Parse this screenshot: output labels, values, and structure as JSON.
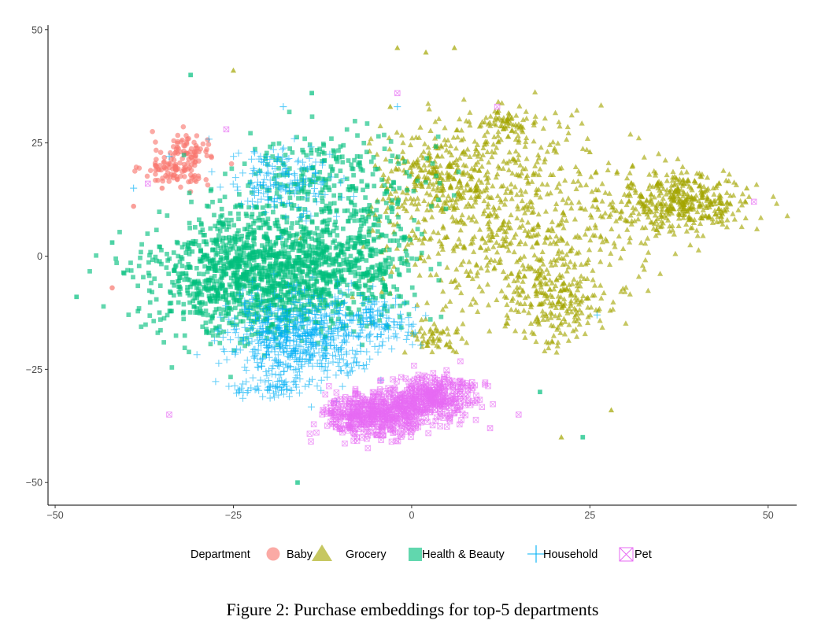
{
  "caption": "Figure 2: Purchase embeddings for top-5 departments",
  "chart_data": {
    "type": "scatter",
    "title": "",
    "xlabel": "",
    "ylabel": "",
    "xlim": [
      -51,
      54
    ],
    "ylim": [
      -55,
      51
    ],
    "x_ticks": [
      -50,
      -25,
      0,
      25,
      50
    ],
    "y_ticks": [
      50,
      25,
      0,
      -25,
      -50
    ],
    "grid": false,
    "legend_title": "Department",
    "legend_position": "bottom",
    "series": [
      {
        "name": "Baby",
        "color": "#F8766D",
        "marker": "circle",
        "clusters": [
          {
            "cx": -32,
            "cy": 24,
            "sx": 1.8,
            "sy": 1.8,
            "n": 60
          },
          {
            "cx": -33,
            "cy": 19,
            "sx": 2.4,
            "sy": 1.8,
            "n": 90
          }
        ],
        "points": [
          [
            -42,
            -7
          ],
          [
            -35,
            15
          ],
          [
            -39,
            11
          ]
        ]
      },
      {
        "name": "Grocery",
        "color": "#A3A500",
        "marker": "triangle",
        "clusters": [
          {
            "cx": 38,
            "cy": 12,
            "sx": 5,
            "sy": 3.5,
            "n": 420
          },
          {
            "cx": 14,
            "cy": 8,
            "sx": 9,
            "sy": 10,
            "n": 650
          },
          {
            "cx": 4,
            "cy": 18,
            "sx": 5,
            "sy": 5,
            "n": 260
          },
          {
            "cx": 13,
            "cy": 29,
            "sx": 2.5,
            "sy": 1.5,
            "n": 80
          },
          {
            "cx": 20,
            "cy": -10,
            "sx": 4,
            "sy": 5,
            "n": 220
          },
          {
            "cx": 3,
            "cy": -18,
            "sx": 2,
            "sy": 2,
            "n": 50
          }
        ],
        "points": [
          [
            -2,
            46
          ],
          [
            2,
            45
          ],
          [
            6,
            46
          ],
          [
            -25,
            41
          ],
          [
            21,
            -40
          ],
          [
            28,
            -34
          ],
          [
            47,
            15
          ],
          [
            -3,
            33
          ],
          [
            25,
            23
          ],
          [
            31,
            20
          ]
        ]
      },
      {
        "name": "Health & Beauty",
        "color": "#00BF7D",
        "marker": "square",
        "clusters": [
          {
            "cx": -22,
            "cy": -4,
            "sx": 7,
            "sy": 7,
            "n": 1300
          },
          {
            "cx": -8,
            "cy": -1,
            "sx": 5,
            "sy": 6,
            "n": 400
          },
          {
            "cx": -12,
            "cy": 18,
            "sx": 7,
            "sy": 5,
            "n": 250
          }
        ],
        "points": [
          [
            -31,
            40
          ],
          [
            -16,
            -50
          ],
          [
            -47,
            -9
          ],
          [
            -42,
            3
          ],
          [
            18,
            -30
          ],
          [
            24,
            -40
          ],
          [
            -14,
            36
          ]
        ]
      },
      {
        "name": "Household",
        "color": "#00B0F6",
        "marker": "plus",
        "clusters": [
          {
            "cx": -16,
            "cy": -18,
            "sx": 5,
            "sy": 4.5,
            "n": 600
          },
          {
            "cx": -5,
            "cy": -14,
            "sx": 3,
            "sy": 3,
            "n": 120
          },
          {
            "cx": -18,
            "cy": 16,
            "sx": 3.5,
            "sy": 4,
            "n": 170
          },
          {
            "cx": -20,
            "cy": -29,
            "sx": 3,
            "sy": 1.2,
            "n": 60
          }
        ],
        "points": [
          [
            -18,
            33
          ],
          [
            -2,
            33
          ],
          [
            -34,
            22
          ],
          [
            -39,
            15
          ],
          [
            26,
            -13
          ]
        ]
      },
      {
        "name": "Pet",
        "color": "#E76BF3",
        "marker": "box-cross",
        "clusters": [
          {
            "cx": -5,
            "cy": -35,
            "sx": 3.5,
            "sy": 2.5,
            "n": 500
          },
          {
            "cx": 3,
            "cy": -31,
            "sx": 3,
            "sy": 2.5,
            "n": 350
          }
        ],
        "points": [
          [
            -34,
            -35
          ],
          [
            -2,
            36
          ],
          [
            15,
            -35
          ],
          [
            11,
            -38
          ],
          [
            -26,
            28
          ],
          [
            12,
            33
          ],
          [
            -37,
            16
          ],
          [
            48,
            12
          ]
        ]
      }
    ]
  }
}
